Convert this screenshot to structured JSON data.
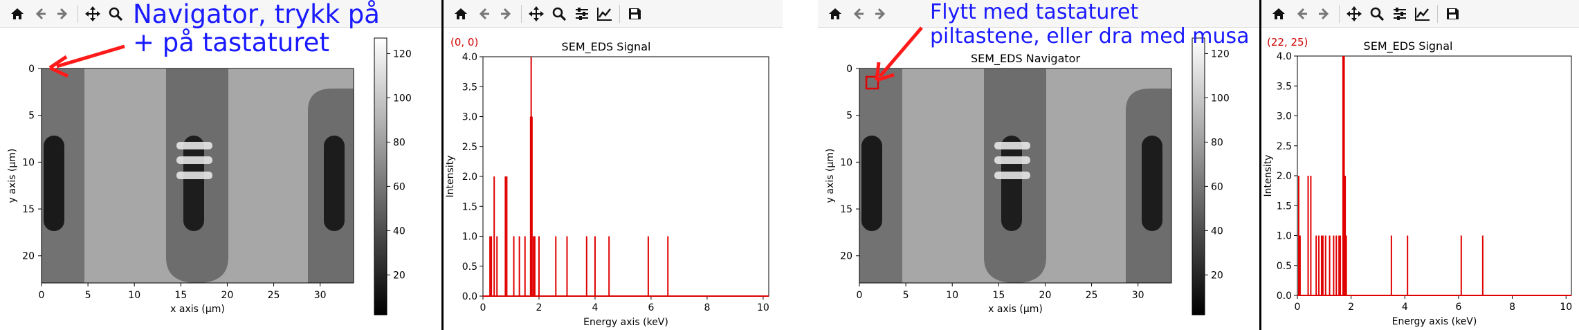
{
  "toolbar_icons": [
    "home-icon",
    "back-arrow-icon",
    "forward-arrow-icon",
    "pan-icon",
    "zoom-icon",
    "configure-subplots-icon",
    "edit-axis-icon",
    "save-icon"
  ],
  "navigator_left": {
    "annotation_line1": "Navigator, trykk på",
    "annotation_line2": "+ på tastaturet",
    "xlabel": "x axis (µm)",
    "ylabel": "y axis (µm)",
    "xticks": [
      "0",
      "5",
      "10",
      "15",
      "20",
      "25",
      "30"
    ],
    "yticks": [
      "0",
      "5",
      "10",
      "15",
      "20"
    ],
    "cbar_ticks": [
      "20",
      "40",
      "60",
      "80",
      "100",
      "120"
    ],
    "cursor_pos": [
      0,
      0
    ]
  },
  "signal_left": {
    "coord": "(0, 0)",
    "title": "SEM_EDS Signal"
  },
  "navigator_right": {
    "annotation_line1": "Flytt med tastaturet",
    "annotation_line2": "piltastene, eller dra med musa",
    "title": "SEM_EDS Navigator",
    "xlabel": "x axis (µm)",
    "ylabel": "y axis (µm)",
    "xticks": [
      "0",
      "5",
      "10",
      "15",
      "20",
      "25",
      "30"
    ],
    "yticks": [
      "0",
      "5",
      "10",
      "15",
      "20"
    ],
    "cbar_ticks": [
      "20",
      "40",
      "60",
      "80",
      "100",
      "120"
    ],
    "cursor_pos": [
      1.2,
      0.6
    ]
  },
  "signal_right": {
    "coord": "(22, 25)",
    "title": "SEM_EDS Signal"
  },
  "chart_data": [
    {
      "type": "bar",
      "title": "SEM_EDS Signal",
      "xlabel": "Energy axis (keV)",
      "ylabel": "Intensity",
      "xlim": [
        0,
        10.2
      ],
      "ylim": [
        0,
        4.0
      ],
      "xticks": [
        0,
        2,
        4,
        6,
        8,
        10
      ],
      "yticks": [
        0.0,
        0.5,
        1.0,
        1.5,
        2.0,
        2.5,
        3.0,
        3.5,
        4.0
      ],
      "color": "#e00000",
      "x": [
        0.25,
        0.3,
        0.4,
        0.5,
        0.8,
        0.85,
        1.1,
        1.3,
        1.5,
        1.7,
        1.72,
        1.75,
        1.8,
        1.85,
        2.0,
        2.6,
        3.0,
        3.7,
        4.0,
        4.5,
        5.9,
        6.6
      ],
      "values": [
        1,
        1,
        2,
        1,
        2,
        2,
        1,
        1,
        1,
        3,
        4,
        3,
        1,
        1,
        1,
        1,
        1,
        1,
        1,
        1,
        1,
        1
      ]
    },
    {
      "type": "bar",
      "title": "SEM_EDS Signal",
      "xlabel": "Energy axis (keV)",
      "ylabel": "Intensity",
      "xlim": [
        0,
        10.2
      ],
      "ylim": [
        0,
        4.0
      ],
      "xticks": [
        0,
        2,
        4,
        6,
        8,
        10
      ],
      "yticks": [
        0.0,
        0.5,
        1.0,
        1.5,
        2.0,
        2.5,
        3.0,
        3.5,
        4.0
      ],
      "color": "#e00000",
      "x": [
        0.05,
        0.1,
        0.4,
        0.5,
        0.7,
        0.8,
        0.9,
        0.95,
        1.05,
        1.2,
        1.35,
        1.45,
        1.55,
        1.6,
        1.7,
        1.72,
        1.74,
        1.78,
        1.82,
        3.5,
        4.1,
        6.1,
        6.9
      ],
      "values": [
        2,
        1,
        2,
        2,
        1,
        1,
        1,
        1,
        1,
        1,
        1,
        1,
        1,
        1,
        4,
        4,
        4,
        2,
        1,
        1,
        1,
        1,
        1
      ]
    }
  ]
}
